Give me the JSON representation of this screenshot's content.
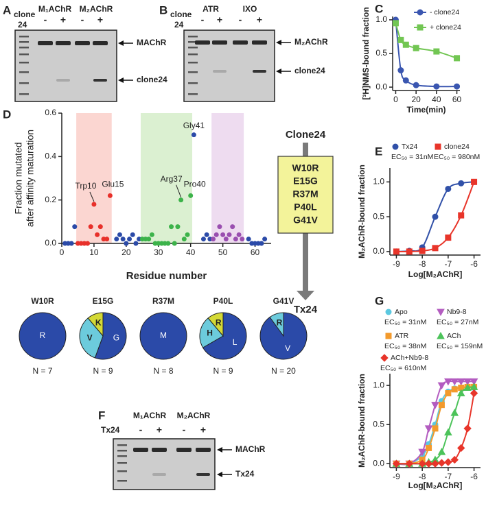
{
  "gels": [
    {
      "panel": "A",
      "lane_label": [
        "clone",
        "24"
      ],
      "groups": [
        "M₁AChR",
        "M₂AChR"
      ],
      "lanes": [
        "-",
        "+",
        "-",
        "+"
      ],
      "bands": [
        "MAChR",
        "clone24"
      ]
    },
    {
      "panel": "B",
      "lane_label": [
        "clone",
        "24"
      ],
      "groups": [
        "ATR",
        "IXO"
      ],
      "lanes": [
        "-",
        "+",
        "-",
        "+"
      ],
      "bands": [
        "M₂AChR",
        "clone24"
      ]
    },
    {
      "panel": "F",
      "lane_label": [
        "Tx24"
      ],
      "groups": [
        "M₁AChR",
        "M₂AChR"
      ],
      "lanes": [
        "-",
        "+",
        "-",
        "+"
      ],
      "bands": [
        "MAChR",
        "Tx24"
      ]
    }
  ],
  "mutation_box": {
    "top": "Clone24",
    "mutations": [
      "W10R",
      "E15G",
      "R37M",
      "P40L",
      "G41V"
    ],
    "bottom": "Tx24"
  },
  "chart_data": [
    {
      "type": "line",
      "panel": "C",
      "xlabel": "Time(min)",
      "ylabel": "[³H]NMS-bound fraction",
      "x": [
        0,
        5,
        10,
        20,
        40,
        60
      ],
      "series": [
        {
          "name": "- clone24",
          "color": "#3a56b0",
          "marker": "circle",
          "values": [
            1.0,
            0.25,
            0.1,
            0.03,
            0.01,
            0.01
          ]
        },
        {
          "name": "+ clone24",
          "color": "#72c653",
          "marker": "square",
          "values": [
            0.95,
            0.7,
            0.63,
            0.58,
            0.53,
            0.43
          ]
        }
      ],
      "xlim": [
        -3,
        63
      ],
      "ylim": [
        -0.05,
        1.05
      ],
      "xticks": [
        0,
        20,
        40,
        60
      ],
      "yticks": [
        {
          "value": 0,
          "label": "0.0"
        },
        0.5,
        {
          "value": 1,
          "label": "1.0"
        }
      ]
    },
    {
      "type": "scatter",
      "panel": "D",
      "xlabel": "Residue number",
      "ylabel": [
        "Fraction mutated",
        "after affinity maturation"
      ],
      "regions": [
        {
          "x": [
            4.5,
            15.5
          ],
          "color": "#fbd6d1"
        },
        {
          "x": [
            24.5,
            40.5
          ],
          "color": "#dbf0d1"
        },
        {
          "x": [
            46.5,
            56.5
          ],
          "color": "#eedcf0"
        }
      ],
      "series": [
        {
          "color": "#2b4aa8",
          "x": [
            1,
            2,
            3,
            4,
            17,
            18,
            19,
            20,
            21,
            22,
            23,
            24,
            41,
            44,
            45,
            46,
            58,
            59,
            60,
            61,
            62,
            63
          ],
          "values": [
            0,
            0,
            0,
            0.077,
            0.02,
            0.04,
            0.02,
            0,
            0.02,
            0.04,
            0,
            0.02,
            0.5,
            0.02,
            0.04,
            0.02,
            0.02,
            0,
            0,
            0,
            0,
            0.02
          ]
        },
        {
          "color": "#e8302a",
          "x": [
            5,
            6,
            7,
            8,
            9,
            10,
            11,
            12,
            13,
            14,
            15
          ],
          "values": [
            0,
            0,
            0,
            0,
            0.077,
            0.18,
            0.04,
            0.077,
            0.02,
            0.02,
            0.22
          ]
        },
        {
          "color": "#3cb34a",
          "x": [
            25,
            26,
            27,
            28,
            29,
            30,
            31,
            32,
            33,
            34,
            35,
            36,
            37,
            38,
            39,
            40
          ],
          "values": [
            0.02,
            0.02,
            0.02,
            0.04,
            0,
            0,
            0,
            0,
            0,
            0.077,
            0,
            0.077,
            0.2,
            0.02,
            0.04,
            0.22
          ]
        },
        {
          "color": "#9a4fb0",
          "x": [
            47,
            48,
            49,
            50,
            51,
            52,
            53,
            54,
            55,
            56
          ],
          "values": [
            0.02,
            0.04,
            0.077,
            0.04,
            0.02,
            0.04,
            0.077,
            0.02,
            0.04,
            0.02
          ]
        }
      ],
      "annotations": [
        {
          "text": "Trp10",
          "x": 10,
          "y": 0.18
        },
        {
          "text": "Glu15",
          "x": 15,
          "y": 0.22
        },
        {
          "text": "Arg37",
          "x": 37,
          "y": 0.2
        },
        {
          "text": "Pro40",
          "x": 40,
          "y": 0.22
        },
        {
          "text": "Gly41",
          "x": 41,
          "y": 0.5
        }
      ],
      "xlim": [
        0,
        65
      ],
      "ylim": [
        0,
        0.6
      ],
      "xticks": [
        0,
        10,
        20,
        30,
        40,
        50,
        60
      ],
      "yticks": [
        {
          "value": 0,
          "label": "0.0"
        },
        0.2,
        0.4,
        0.6
      ]
    },
    {
      "type": "line",
      "panel": "E",
      "xlabel": "Log[M₂AChR]",
      "ylabel": "M₂AChR-bound fraction",
      "x": [
        -9,
        -8.5,
        -8,
        -7.5,
        -7,
        -6.5,
        -6
      ],
      "series": [
        {
          "name": "Tx24",
          "ec50_label": "EC₅₀ = 31nM",
          "color": "#3050a8",
          "marker": "circle",
          "values": [
            0,
            0.01,
            0.06,
            0.5,
            0.9,
            0.98,
            1.0
          ]
        },
        {
          "name": "clone24",
          "ec50_label": "EC₅₀ = 980nM",
          "color": "#e8352a",
          "marker": "square",
          "values": [
            0,
            0,
            0.01,
            0.05,
            0.2,
            0.52,
            1.0
          ]
        }
      ],
      "xlim": [
        -9.25,
        -5.75
      ],
      "ylim": [
        -0.05,
        1.2
      ],
      "xticks": [
        -9,
        -8,
        -7,
        -6
      ],
      "yticks": [
        {
          "value": 0,
          "label": "0.0"
        },
        0.5,
        {
          "value": 1,
          "label": "1.0"
        }
      ]
    },
    {
      "type": "line",
      "panel": "G",
      "xlabel": "Log[M₂AChR]",
      "ylabel": "M₂AChR-bound fraction",
      "x": [
        -9,
        -8.5,
        -8,
        -7.75,
        -7.5,
        -7.25,
        -7,
        -6.75,
        -6.5,
        -6.25,
        -6
      ],
      "series": [
        {
          "name": "Apo",
          "ec50_label": "EC₅₀ = 31nM",
          "color": "#5bc8e0",
          "marker": "circle",
          "values": [
            0,
            0,
            0.1,
            0.25,
            0.5,
            0.8,
            0.92,
            0.96,
            0.97,
            0.98,
            0.97
          ]
        },
        {
          "name": "Nb9-8",
          "ec50_label": "EC₅₀ = 27nM",
          "color": "#b35cc0",
          "marker": "triangle-down",
          "values": [
            0,
            0,
            0.15,
            0.45,
            0.75,
            1.0,
            1.05,
            1.05,
            1.05,
            1.05,
            1.05
          ]
        },
        {
          "name": "ATR",
          "ec50_label": "EC₅₀ = 38nM",
          "color": "#f39a2c",
          "marker": "square",
          "values": [
            0,
            0,
            0.05,
            0.2,
            0.45,
            0.75,
            0.9,
            0.95,
            0.97,
            0.98,
            0.98
          ]
        },
        {
          "name": "ACh",
          "ec50_label": "EC₅₀ = 159nM",
          "color": "#4cc35a",
          "marker": "triangle",
          "values": [
            0,
            0,
            0,
            0.02,
            0.05,
            0.15,
            0.4,
            0.65,
            0.9,
            0.97,
            0.98
          ]
        },
        {
          "name": "ACh+Nb9-8",
          "ec50_label": "EC₅₀ = 610nM",
          "color": "#e8352a",
          "marker": "diamond",
          "values": [
            0,
            0,
            0,
            0,
            0,
            0.01,
            0.02,
            0.05,
            0.2,
            0.45,
            0.9
          ]
        }
      ],
      "xlim": [
        -9.25,
        -5.75
      ],
      "ylim": [
        -0.05,
        1.15
      ],
      "xticks": [
        -9,
        -8,
        -7,
        -6
      ],
      "yticks": [
        {
          "value": 0,
          "label": "0.0"
        },
        0.5,
        {
          "value": 1,
          "label": "1.0"
        }
      ]
    },
    {
      "type": "pie",
      "title": "W10R",
      "categories": [
        "R"
      ],
      "values": [
        7
      ],
      "colors": [
        "#2b4aa8"
      ],
      "caption": "N = 7"
    },
    {
      "type": "pie",
      "title": "E15G",
      "categories": [
        "G",
        "V",
        "K"
      ],
      "values": [
        5,
        3,
        1
      ],
      "colors": [
        "#2b4aa8",
        "#6ccbdc",
        "#d4d936"
      ],
      "caption": "N = 9"
    },
    {
      "type": "pie",
      "title": "R37M",
      "categories": [
        "M"
      ],
      "values": [
        8
      ],
      "colors": [
        "#2b4aa8"
      ],
      "caption": "N = 8"
    },
    {
      "type": "pie",
      "title": "P40L",
      "categories": [
        "L",
        "H",
        "R"
      ],
      "values": [
        6,
        2,
        1
      ],
      "colors": [
        "#2b4aa8",
        "#6ccbdc",
        "#d4d936"
      ],
      "caption": "N = 9"
    },
    {
      "type": "pie",
      "title": "G41V",
      "categories": [
        "V",
        "R"
      ],
      "values": [
        18,
        2
      ],
      "colors": [
        "#2b4aa8",
        "#6ccbdc"
      ],
      "caption": "N = 20"
    }
  ]
}
